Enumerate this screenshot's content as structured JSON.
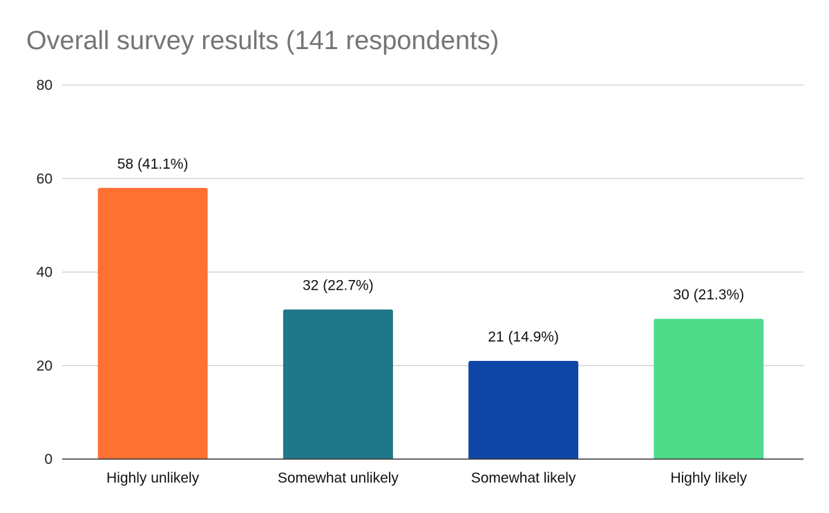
{
  "chart_data": {
    "type": "bar",
    "title": "Overall survey results (141 respondents)",
    "xlabel": "",
    "ylabel": "",
    "categories": [
      "Highly unlikely",
      "Somewhat unlikely",
      "Somewhat likely",
      "Highly likely"
    ],
    "values": [
      58,
      32,
      21,
      30
    ],
    "data_labels": [
      "58 (41.1%)",
      "32 (22.7%)",
      "21 (14.9%)",
      "30 (21.3%)"
    ],
    "colors": [
      "#FF7033",
      "#1F7788",
      "#1045A8",
      "#4EDB8A"
    ],
    "ylim": [
      0,
      80
    ],
    "yticks": [
      0,
      20,
      40,
      60,
      80
    ],
    "ytick_labels": [
      "0",
      "20",
      "40",
      "60",
      "80"
    ],
    "grid": true,
    "legend": "none",
    "title_color": "#757575",
    "grid_color": "#cccccc",
    "axis_color": "#333333"
  }
}
